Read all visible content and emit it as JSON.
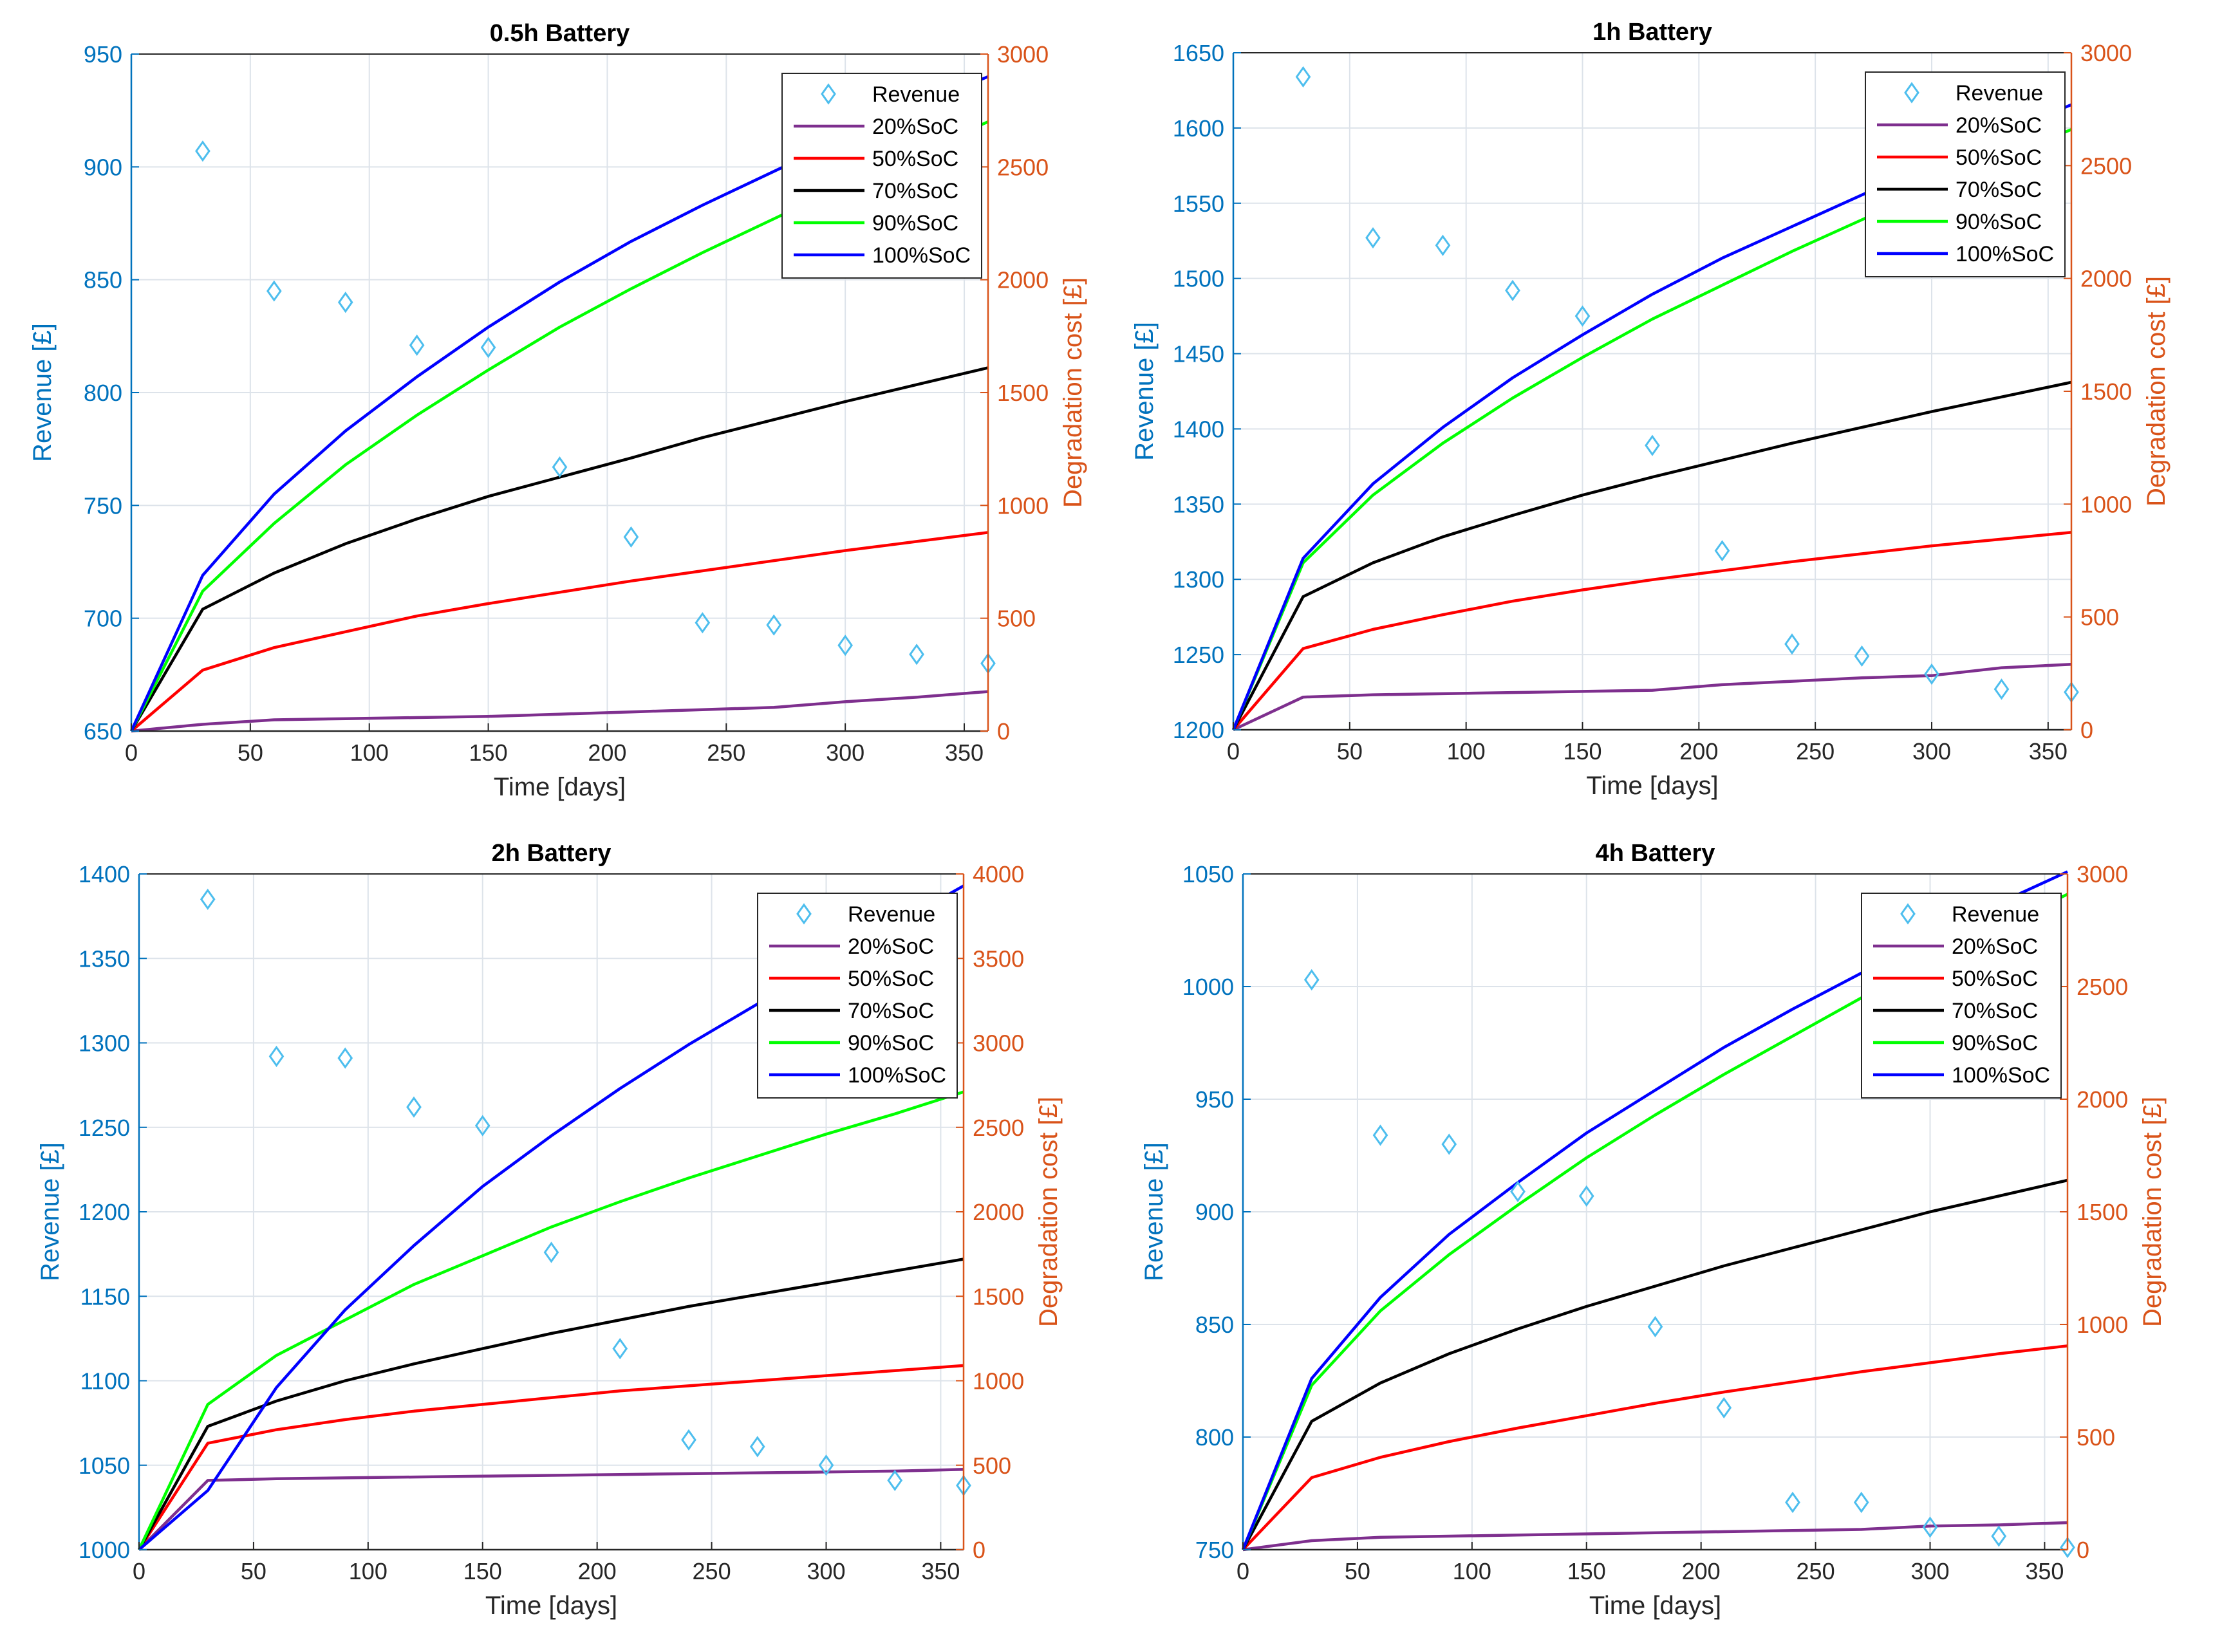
{
  "colors": {
    "left_axis": "#0072BD",
    "right_axis": "#D95319",
    "revenue_marker": "#4DBEEE",
    "grid": "#dde3ea",
    "series": {
      "20%SoC": "#7E2F8E",
      "50%SoC": "#FF0000",
      "70%SoC": "#000000",
      "90%SoC": "#00FF00",
      "100%SoC": "#0000FF"
    }
  },
  "chart_data": [
    {
      "type": "line",
      "title": "0.5h Battery",
      "xlabel": "Time [days]",
      "ylabel_left": "Revenue [£]",
      "ylabel_right": "Degradation cost [£]",
      "xlim": [
        0,
        360
      ],
      "xticks": [
        0,
        50,
        100,
        150,
        200,
        250,
        300,
        350
      ],
      "ylim_left": [
        650,
        950
      ],
      "yticks_left": [
        650,
        700,
        750,
        800,
        850,
        900,
        950
      ],
      "ylim_right": [
        0,
        3000
      ],
      "yticks_right": [
        0,
        500,
        1000,
        1500,
        2000,
        2500,
        3000
      ],
      "grid": true,
      "legend_position": "top-right",
      "legend": [
        "Revenue",
        "20%SoC",
        "50%SoC",
        "70%SoC",
        "90%SoC",
        "100%SoC"
      ],
      "revenue": {
        "x": [
          30,
          60,
          90,
          120,
          150,
          180,
          210,
          240,
          270,
          300,
          330,
          360
        ],
        "y": [
          907,
          845,
          840,
          821,
          820,
          767,
          736,
          698,
          697,
          688,
          684,
          680
        ]
      },
      "degradation_x": [
        0,
        30,
        60,
        90,
        120,
        150,
        180,
        210,
        240,
        270,
        300,
        330,
        360
      ],
      "series": [
        {
          "name": "20%SoC",
          "values": [
            0,
            30,
            50,
            55,
            60,
            65,
            75,
            85,
            95,
            105,
            130,
            150,
            175
          ]
        },
        {
          "name": "50%SoC",
          "values": [
            0,
            270,
            370,
            440,
            510,
            565,
            615,
            665,
            710,
            755,
            800,
            840,
            880
          ]
        },
        {
          "name": "70%SoC",
          "values": [
            0,
            540,
            700,
            830,
            940,
            1040,
            1125,
            1210,
            1300,
            1380,
            1460,
            1535,
            1610
          ]
        },
        {
          "name": "90%SoC",
          "values": [
            0,
            620,
            920,
            1180,
            1400,
            1600,
            1790,
            1960,
            2120,
            2270,
            2420,
            2560,
            2700
          ]
        },
        {
          "name": "100%SoC",
          "values": [
            0,
            690,
            1050,
            1330,
            1570,
            1790,
            1990,
            2170,
            2330,
            2480,
            2630,
            2770,
            2900
          ]
        }
      ]
    },
    {
      "type": "line",
      "title": "1h Battery",
      "xlabel": "Time [days]",
      "ylabel_left": "Revenue [£]",
      "ylabel_right": "Degradation cost [£]",
      "xlim": [
        0,
        360
      ],
      "xticks": [
        0,
        50,
        100,
        150,
        200,
        250,
        300,
        350
      ],
      "ylim_left": [
        1200,
        1650
      ],
      "yticks_left": [
        1200,
        1250,
        1300,
        1350,
        1400,
        1450,
        1500,
        1550,
        1600,
        1650
      ],
      "ylim_right": [
        0,
        3000
      ],
      "yticks_right": [
        0,
        500,
        1000,
        1500,
        2000,
        2500,
        3000
      ],
      "grid": true,
      "legend_position": "top-right",
      "legend": [
        "Revenue",
        "20%SoC",
        "50%SoC",
        "70%SoC",
        "90%SoC",
        "100%SoC"
      ],
      "revenue": {
        "x": [
          30,
          60,
          90,
          120,
          150,
          180,
          210,
          240,
          270,
          300,
          330,
          360
        ],
        "y": [
          1634,
          1527,
          1522,
          1492,
          1475,
          1389,
          1319,
          1257,
          1249,
          1237,
          1227,
          1225
        ]
      },
      "degradation_x": [
        0,
        30,
        60,
        90,
        120,
        150,
        180,
        210,
        240,
        270,
        300,
        330,
        360
      ],
      "series": [
        {
          "name": "20%SoC",
          "values": [
            0,
            145,
            155,
            160,
            165,
            170,
            175,
            200,
            215,
            230,
            240,
            275,
            290
          ]
        },
        {
          "name": "50%SoC",
          "values": [
            0,
            360,
            445,
            510,
            570,
            620,
            665,
            705,
            745,
            780,
            815,
            845,
            875
          ]
        },
        {
          "name": "70%SoC",
          "values": [
            0,
            590,
            740,
            855,
            950,
            1040,
            1120,
            1195,
            1270,
            1340,
            1410,
            1475,
            1540
          ]
        },
        {
          "name": "90%SoC",
          "values": [
            0,
            740,
            1040,
            1270,
            1470,
            1650,
            1820,
            1970,
            2120,
            2260,
            2400,
            2530,
            2660
          ]
        },
        {
          "name": "100%SoC",
          "values": [
            0,
            760,
            1090,
            1340,
            1560,
            1750,
            1930,
            2090,
            2230,
            2370,
            2510,
            2640,
            2770
          ]
        }
      ]
    },
    {
      "type": "line",
      "title": "2h Battery",
      "xlabel": "Time [days]",
      "ylabel_left": "Revenue [£]",
      "ylabel_right": "Degradation cost [£]",
      "xlim": [
        0,
        360
      ],
      "xticks": [
        0,
        50,
        100,
        150,
        200,
        250,
        300,
        350
      ],
      "ylim_left": [
        1000,
        1400
      ],
      "yticks_left": [
        1000,
        1050,
        1100,
        1150,
        1200,
        1250,
        1300,
        1350,
        1400
      ],
      "ylim_right": [
        0,
        4000
      ],
      "yticks_right": [
        0,
        500,
        1000,
        1500,
        2000,
        2500,
        3000,
        3500,
        4000
      ],
      "grid": true,
      "legend_position": "top-right",
      "legend": [
        "Revenue",
        "20%SoC",
        "50%SoC",
        "70%SoC",
        "90%SoC",
        "100%SoC"
      ],
      "revenue": {
        "x": [
          30,
          60,
          90,
          120,
          150,
          180,
          210,
          240,
          270,
          300,
          330,
          360
        ],
        "y": [
          1385,
          1292,
          1291,
          1262,
          1251,
          1176,
          1119,
          1065,
          1061,
          1050,
          1041,
          1038
        ]
      },
      "degradation_x": [
        0,
        30,
        60,
        90,
        120,
        150,
        180,
        210,
        240,
        270,
        300,
        330,
        360
      ],
      "series": [
        {
          "name": "20%SoC",
          "values": [
            0,
            410,
            420,
            425,
            430,
            435,
            440,
            445,
            450,
            455,
            460,
            465,
            475
          ]
        },
        {
          "name": "50%SoC",
          "values": [
            0,
            630,
            710,
            770,
            820,
            860,
            900,
            940,
            970,
            1000,
            1030,
            1060,
            1090
          ]
        },
        {
          "name": "70%SoC",
          "values": [
            0,
            730,
            880,
            1000,
            1100,
            1190,
            1280,
            1360,
            1440,
            1510,
            1580,
            1650,
            1720
          ]
        },
        {
          "name": "90%SoC",
          "values": [
            0,
            860,
            1150,
            1360,
            1570,
            1740,
            1910,
            2060,
            2200,
            2330,
            2460,
            2580,
            2710
          ]
        },
        {
          "name": "100%SoC",
          "values": [
            0,
            350,
            960,
            1420,
            1800,
            2150,
            2450,
            2730,
            2990,
            3230,
            3470,
            3700,
            3930
          ]
        }
      ]
    },
    {
      "type": "line",
      "title": "4h Battery",
      "xlabel": "Time [days]",
      "ylabel_left": "Revenue [£]",
      "ylabel_right": "Degradation cost [£]",
      "xlim": [
        0,
        360
      ],
      "xticks": [
        0,
        50,
        100,
        150,
        200,
        250,
        300,
        350
      ],
      "ylim_left": [
        750,
        1050
      ],
      "yticks_left": [
        750,
        800,
        850,
        900,
        950,
        1000,
        1050
      ],
      "ylim_right": [
        0,
        3000
      ],
      "yticks_right": [
        0,
        500,
        1000,
        1500,
        2000,
        2500,
        3000
      ],
      "grid": true,
      "legend_position": "top-right",
      "legend": [
        "Revenue",
        "20%SoC",
        "50%SoC",
        "70%SoC",
        "90%SoC",
        "100%SoC"
      ],
      "revenue": {
        "x": [
          30,
          60,
          90,
          120,
          150,
          180,
          210,
          240,
          270,
          300,
          330,
          360
        ],
        "y": [
          1003,
          934,
          930,
          909,
          907,
          849,
          813,
          771,
          771,
          760,
          756,
          751
        ]
      },
      "degradation_x": [
        0,
        30,
        60,
        90,
        120,
        150,
        180,
        210,
        240,
        270,
        300,
        330,
        360
      ],
      "series": [
        {
          "name": "20%SoC",
          "values": [
            0,
            40,
            55,
            60,
            65,
            70,
            75,
            80,
            85,
            90,
            105,
            110,
            120
          ]
        },
        {
          "name": "50%SoC",
          "values": [
            0,
            320,
            410,
            480,
            540,
            595,
            650,
            700,
            745,
            790,
            830,
            870,
            905
          ]
        },
        {
          "name": "70%SoC",
          "values": [
            0,
            570,
            740,
            870,
            980,
            1080,
            1170,
            1260,
            1340,
            1420,
            1500,
            1570,
            1640
          ]
        },
        {
          "name": "90%SoC",
          "values": [
            0,
            730,
            1060,
            1310,
            1530,
            1740,
            1930,
            2110,
            2280,
            2450,
            2610,
            2760,
            2910
          ]
        },
        {
          "name": "100%SoC",
          "values": [
            0,
            760,
            1120,
            1400,
            1630,
            1850,
            2040,
            2230,
            2400,
            2560,
            2720,
            2870,
            3010
          ]
        }
      ]
    }
  ]
}
